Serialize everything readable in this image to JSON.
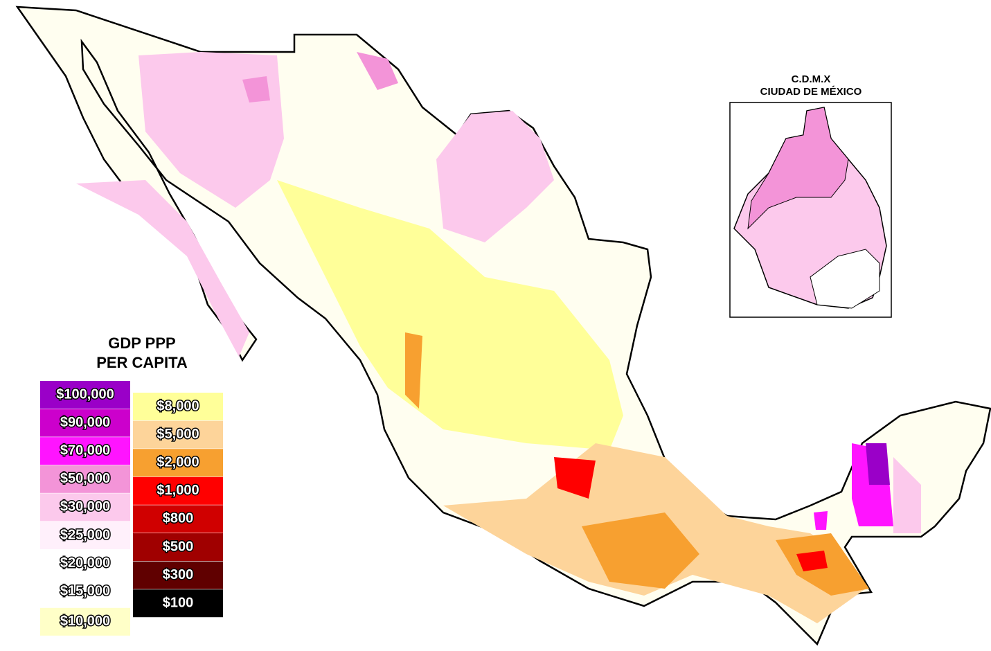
{
  "legend": {
    "title": [
      "GDP PPP",
      "PER CAPITA"
    ],
    "columns": [
      [
        {
          "label": "$100,000",
          "color": "#9a00c8"
        },
        {
          "label": "$90,000",
          "color": "#cc00cc"
        },
        {
          "label": "$70,000",
          "color": "#ff14ff"
        },
        {
          "label": "$50,000",
          "color": "#f394d8"
        },
        {
          "label": "$30,000",
          "color": "#fcc9ec"
        },
        {
          "label": "$25,000",
          "color": "#fff0fb"
        },
        {
          "label": "$20,000",
          "color": "#ffffff"
        },
        {
          "label": "$15,000",
          "color": "#ffffff"
        },
        {
          "label": "$10,000",
          "color": "#ffffc8"
        }
      ],
      [
        {
          "label": "$8,000",
          "color": "#ffff99"
        },
        {
          "label": "$5,000",
          "color": "#fdd49a"
        },
        {
          "label": "$2,000",
          "color": "#f7a030"
        },
        {
          "label": "$1,000",
          "color": "#ff0000"
        },
        {
          "label": "$800",
          "color": "#d00000"
        },
        {
          "label": "$500",
          "color": "#a00000"
        },
        {
          "label": "$300",
          "color": "#600000"
        },
        {
          "label": "$100",
          "color": "#000000"
        }
      ]
    ]
  },
  "inset": {
    "title": [
      "C.D.M.X",
      "CIUDAD DE MÉXICO"
    ]
  }
}
